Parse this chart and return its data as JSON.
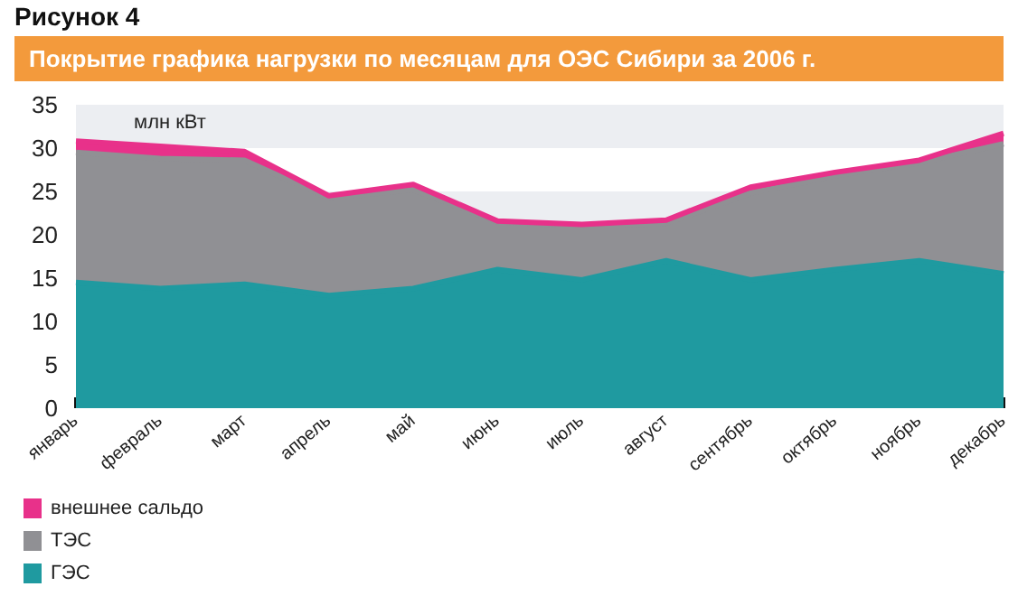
{
  "chart_data": {
    "type": "area",
    "stacked": true,
    "title": "Рисунок 4",
    "subtitle": "Покрытие графика нагрузки по месяцам для ОЭС Сибири за 2006 г.",
    "ylabel": "млн кВт",
    "categories": [
      "январь",
      "февраль",
      "март",
      "апрель",
      "май",
      "июнь",
      "июль",
      "август",
      "сентябрь",
      "октябрь",
      "ноябрь",
      "декабрь"
    ],
    "series": [
      {
        "name": "ГЭС",
        "color": "#1f9aa0",
        "values": [
          14.5,
          13.8,
          14.3,
          13,
          13.8,
          16,
          14.8,
          17,
          14.8,
          16,
          17,
          15.5
        ]
      },
      {
        "name": "ТЭС",
        "color": "#909094",
        "values": [
          15,
          15,
          14.3,
          11.2,
          11.4,
          5.5,
          6.2,
          4.3,
          10,
          10.8,
          11.3,
          15
        ]
      },
      {
        "name": "внешнее сальдо",
        "color": "#e8318a",
        "values": [
          1.3,
          1.4,
          1,
          0.3,
          0.6,
          0.1,
          0.2,
          0.4,
          0.7,
          0.4,
          0.3,
          1.2
        ]
      }
    ],
    "ylim": [
      0,
      35
    ],
    "yticks": [
      0,
      5,
      10,
      15,
      20,
      25,
      30,
      35
    ],
    "legend": "bottom left"
  }
}
